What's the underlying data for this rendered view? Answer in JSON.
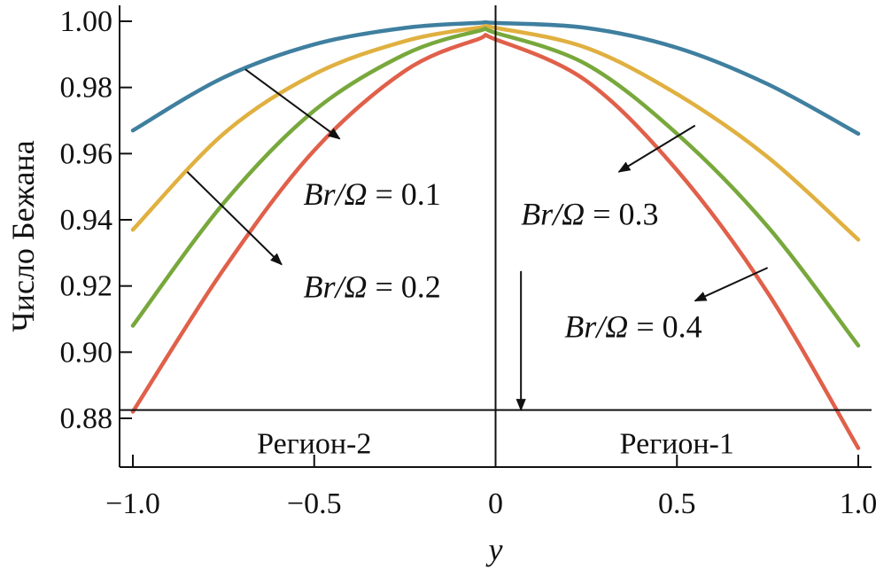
{
  "chart_data": {
    "type": "line",
    "xlabel": "y",
    "ylabel": "Число Бежана",
    "xlim": [
      -1.0,
      1.0
    ],
    "ylim": [
      0.875,
      1.005
    ],
    "x_ticks": [
      {
        "value": -1.0,
        "label": "−1.0"
      },
      {
        "value": -0.5,
        "label": "−0.5"
      },
      {
        "value": 0,
        "label": "0"
      },
      {
        "value": 0.5,
        "label": "0.5"
      },
      {
        "value": 1.0,
        "label": "1.0"
      }
    ],
    "y_ticks": [
      {
        "value": 0.88,
        "label": "0.88"
      },
      {
        "value": 0.9,
        "label": "0.90"
      },
      {
        "value": 0.92,
        "label": "0.92"
      },
      {
        "value": 0.94,
        "label": "0.94"
      },
      {
        "value": 0.96,
        "label": "0.96"
      },
      {
        "value": 0.98,
        "label": "0.98"
      },
      {
        "value": 1.0,
        "label": "1.00"
      }
    ],
    "grid": false,
    "series": [
      {
        "color": "#3f7f9f",
        "x": [
          -1.0,
          -0.75,
          -0.5,
          -0.25,
          -0.05,
          0,
          0.25,
          0.5,
          0.75,
          1.0
        ],
        "y": [
          0.967,
          0.983,
          0.993,
          0.998,
          0.9995,
          0.9995,
          0.998,
          0.992,
          0.981,
          0.966
        ]
      },
      {
        "color": "#e0b040",
        "x": [
          -1.0,
          -0.75,
          -0.5,
          -0.25,
          -0.05,
          0,
          0.25,
          0.5,
          0.75,
          1.0
        ],
        "y": [
          0.937,
          0.966,
          0.984,
          0.994,
          0.998,
          0.998,
          0.992,
          0.978,
          0.959,
          0.934
        ]
      },
      {
        "color": "#78a83c",
        "x": [
          -1.0,
          -0.75,
          -0.5,
          -0.25,
          -0.05,
          0,
          0.25,
          0.5,
          0.75,
          1.0
        ],
        "y": [
          0.908,
          0.945,
          0.973,
          0.99,
          0.997,
          0.9965,
          0.987,
          0.966,
          0.938,
          0.902
        ]
      },
      {
        "color": "#e0604a",
        "x": [
          -1.0,
          -0.75,
          -0.5,
          -0.25,
          -0.05,
          0,
          0.25,
          0.5,
          0.75,
          1.0
        ],
        "y": [
          0.882,
          0.925,
          0.961,
          0.985,
          0.9945,
          0.9945,
          0.982,
          0.955,
          0.918,
          0.871
        ]
      }
    ],
    "annotations": [
      {
        "text_prefix": "Br/Ω",
        "text_value": " = 0.1",
        "text_at": [
          -0.53,
          0.9445
        ],
        "arrow_from": [
          -0.69,
          0.9855
        ],
        "arrow_to": [
          -0.43,
          0.9645
        ]
      },
      {
        "text_prefix": "Br/Ω",
        "text_value": " = 0.2",
        "text_at": [
          -0.53,
          0.9165
        ],
        "arrow_from": [
          -0.85,
          0.9545
        ],
        "arrow_to": [
          -0.59,
          0.9265
        ]
      },
      {
        "text_prefix": "Br/Ω",
        "text_value": " = 0.3",
        "text_at": [
          0.07,
          0.9385
        ],
        "arrow_from": [
          0.55,
          0.9685
        ],
        "arrow_to": [
          0.34,
          0.9545
        ]
      },
      {
        "text_prefix": "Br/Ω",
        "text_value": " = 0.4",
        "text_at": [
          0.19,
          0.9045
        ],
        "arrow_from": [
          0.75,
          0.9255
        ],
        "arrow_to": [
          0.55,
          0.9155
        ]
      }
    ],
    "vertical_arrow": {
      "x": 0.07,
      "y_from": 0.9245,
      "y_to": 0.8825
    },
    "center_line_x": 0,
    "region_line_y": 0.8825,
    "regions": [
      {
        "label": "Регион-2",
        "at": [
          -0.5,
          0.8775
        ]
      },
      {
        "label": "Регион-1",
        "at": [
          0.5,
          0.8775
        ]
      }
    ]
  }
}
